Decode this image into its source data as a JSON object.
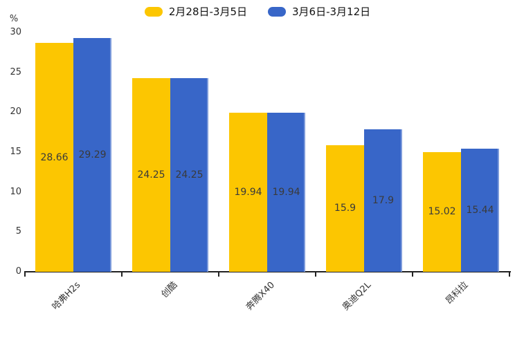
{
  "chart_data": {
    "type": "bar",
    "ylabel_unit": "%",
    "categories": [
      "哈弗H2s",
      "创酷",
      "奔腾X40",
      "奥迪Q2L",
      "昂科拉"
    ],
    "series": [
      {
        "name": "2月28日-3月5日",
        "color": "#FCC601",
        "values": [
          28.66,
          24.25,
          19.94,
          15.9,
          15.02
        ]
      },
      {
        "name": "3月6日-3月12日",
        "color": "#3866C8",
        "values": [
          29.29,
          24.25,
          19.94,
          17.9,
          15.44
        ]
      }
    ],
    "ylim": [
      0,
      30
    ],
    "yticks": [
      0,
      5,
      10,
      15,
      20,
      25,
      30
    ],
    "legend_position": "top",
    "grid": false,
    "value_labels_shown": true,
    "xlabel_rotation_deg": 45
  }
}
